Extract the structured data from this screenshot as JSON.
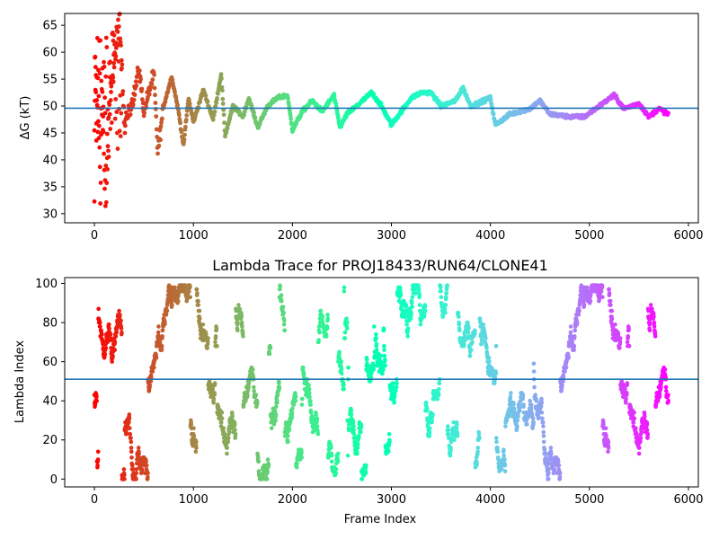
{
  "chart_data": [
    {
      "type": "scatter",
      "title": "",
      "xlabel": "",
      "ylabel": "ΔG (kT)",
      "xlim": [
        -300,
        6100
      ],
      "ylim": [
        28.3,
        67.2
      ],
      "xticks": [
        0,
        1000,
        2000,
        3000,
        4000,
        5000,
        6000
      ],
      "yticks": [
        30,
        35,
        40,
        45,
        50,
        55,
        60,
        65
      ],
      "hline": 49.6,
      "hline_color": "#1f77b4",
      "colormap": "rainbow (red at frame 0 → violet at last frame)",
      "n_frames": 5800,
      "grid": false,
      "series_outline": [
        {
          "x": 0,
          "y": 30.0
        },
        {
          "x": 0,
          "y": 42.0
        },
        {
          "x": 10,
          "y": 60.5
        },
        {
          "x": 20,
          "y": 48.0
        },
        {
          "x": 40,
          "y": 55.0
        },
        {
          "x": 60,
          "y": 35.5
        },
        {
          "x": 80,
          "y": 52.0
        },
        {
          "x": 100,
          "y": 37.0
        },
        {
          "x": 120,
          "y": 33.0
        },
        {
          "x": 150,
          "y": 50.0
        },
        {
          "x": 200,
          "y": 58.0
        },
        {
          "x": 260,
          "y": 65.5
        },
        {
          "x": 300,
          "y": 46.0
        },
        {
          "x": 400,
          "y": 52.0
        },
        {
          "x": 450,
          "y": 57.0
        },
        {
          "x": 500,
          "y": 49.0
        },
        {
          "x": 600,
          "y": 56.0
        },
        {
          "x": 640,
          "y": 41.5
        },
        {
          "x": 700,
          "y": 50.0
        },
        {
          "x": 780,
          "y": 55.5
        },
        {
          "x": 850,
          "y": 49.0
        },
        {
          "x": 900,
          "y": 42.5
        },
        {
          "x": 950,
          "y": 51.5
        },
        {
          "x": 1000,
          "y": 47.0
        },
        {
          "x": 1100,
          "y": 53.0
        },
        {
          "x": 1200,
          "y": 47.5
        },
        {
          "x": 1280,
          "y": 56.0
        },
        {
          "x": 1320,
          "y": 44.5
        },
        {
          "x": 1400,
          "y": 50.0
        },
        {
          "x": 1500,
          "y": 48.0
        },
        {
          "x": 1560,
          "y": 51.5
        },
        {
          "x": 1650,
          "y": 46.0
        },
        {
          "x": 1750,
          "y": 50.0
        },
        {
          "x": 1850,
          "y": 51.5
        },
        {
          "x": 1950,
          "y": 52.0
        },
        {
          "x": 2000,
          "y": 45.5
        },
        {
          "x": 2100,
          "y": 49.0
        },
        {
          "x": 2200,
          "y": 51.0
        },
        {
          "x": 2300,
          "y": 49.0
        },
        {
          "x": 2420,
          "y": 52.0
        },
        {
          "x": 2480,
          "y": 46.0
        },
        {
          "x": 2550,
          "y": 48.5
        },
        {
          "x": 2650,
          "y": 50.0
        },
        {
          "x": 2800,
          "y": 52.5
        },
        {
          "x": 2900,
          "y": 50.0
        },
        {
          "x": 3000,
          "y": 46.5
        },
        {
          "x": 3100,
          "y": 49.0
        },
        {
          "x": 3200,
          "y": 51.5
        },
        {
          "x": 3300,
          "y": 52.5
        },
        {
          "x": 3400,
          "y": 52.5
        },
        {
          "x": 3500,
          "y": 50.0
        },
        {
          "x": 3650,
          "y": 51.0
        },
        {
          "x": 3720,
          "y": 53.5
        },
        {
          "x": 3800,
          "y": 50.0
        },
        {
          "x": 4000,
          "y": 51.5
        },
        {
          "x": 4050,
          "y": 46.5
        },
        {
          "x": 4200,
          "y": 48.5
        },
        {
          "x": 4400,
          "y": 49.5
        },
        {
          "x": 4500,
          "y": 51.0
        },
        {
          "x": 4600,
          "y": 48.5
        },
        {
          "x": 4800,
          "y": 48.0
        },
        {
          "x": 4950,
          "y": 48.0
        },
        {
          "x": 5100,
          "y": 50.0
        },
        {
          "x": 5250,
          "y": 52.0
        },
        {
          "x": 5350,
          "y": 49.5
        },
        {
          "x": 5500,
          "y": 50.5
        },
        {
          "x": 5600,
          "y": 48.0
        },
        {
          "x": 5700,
          "y": 49.5
        },
        {
          "x": 5800,
          "y": 48.5
        }
      ]
    },
    {
      "type": "scatter",
      "title": "Lambda Trace for PROJ18433/RUN64/CLONE41",
      "xlabel": "Frame Index",
      "ylabel": "Lambda Index",
      "xlim": [
        -300,
        6100
      ],
      "ylim": [
        -4,
        103
      ],
      "xticks": [
        0,
        1000,
        2000,
        3000,
        4000,
        5000,
        6000
      ],
      "yticks": [
        0,
        20,
        40,
        60,
        80,
        100
      ],
      "hline": 51,
      "hline_color": "#1f77b4",
      "colormap": "rainbow (red at frame 0 → violet at last frame)",
      "n_frames": 5800,
      "lambda_range": [
        0,
        99
      ],
      "grid": false
    }
  ]
}
